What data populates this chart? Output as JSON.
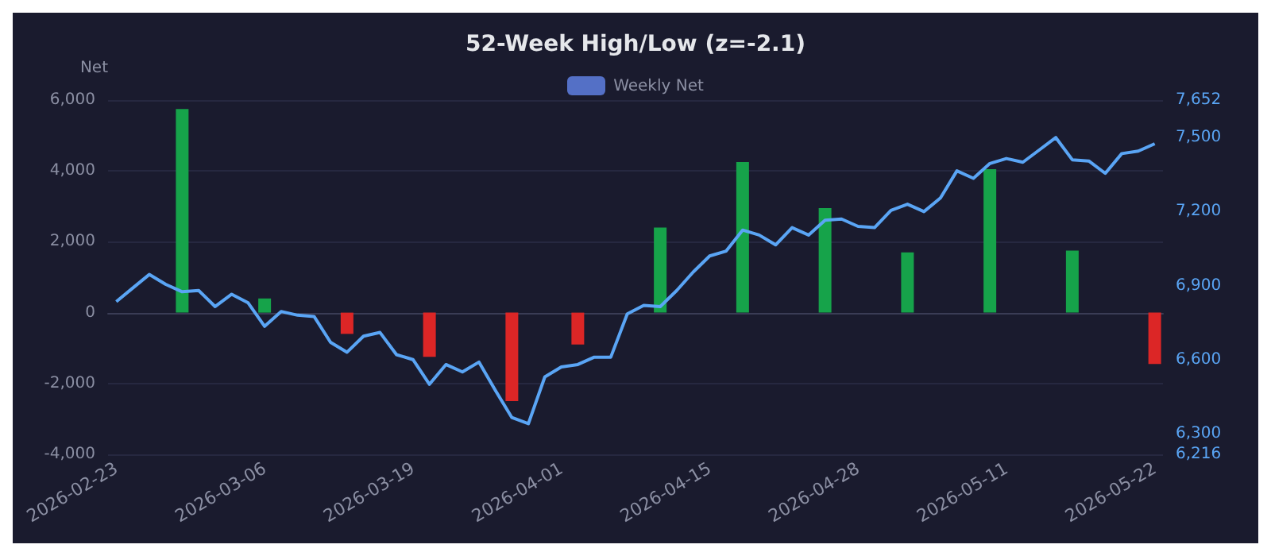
{
  "chart_data": {
    "type": "bar",
    "title": "52-Week High/Low (z=-2.1)",
    "ylabel": "Net",
    "categories": [
      "2026-02-23",
      null,
      null,
      null,
      null,
      null,
      null,
      null,
      null,
      "2026-03-06",
      null,
      null,
      null,
      null,
      null,
      null,
      null,
      null,
      "2026-03-19",
      null,
      null,
      null,
      null,
      null,
      null,
      null,
      null,
      "2026-04-01",
      null,
      null,
      null,
      null,
      null,
      null,
      null,
      null,
      "2026-04-15",
      null,
      null,
      null,
      null,
      null,
      null,
      null,
      null,
      "2026-04-28",
      null,
      null,
      null,
      null,
      null,
      null,
      null,
      null,
      "2026-05-11",
      null,
      null,
      null,
      null,
      null,
      null,
      null,
      null,
      "2026-05-22"
    ],
    "series": [
      {
        "name": "Weekly Net",
        "color": "#5470c6",
        "values": [
          null,
          null,
          null,
          null,
          5750,
          null,
          null,
          null,
          null,
          400,
          null,
          null,
          null,
          null,
          -600,
          null,
          null,
          null,
          null,
          -1250,
          null,
          null,
          null,
          null,
          -2500,
          null,
          null,
          null,
          -900,
          null,
          null,
          null,
          null,
          2400,
          null,
          null,
          null,
          null,
          4250,
          null,
          null,
          null,
          null,
          2950,
          null,
          null,
          null,
          null,
          1700,
          null,
          null,
          null,
          null,
          4050,
          null,
          null,
          null,
          null,
          1750,
          null,
          null,
          null,
          null,
          -1450
        ],
        "colors": [
          null,
          null,
          null,
          null,
          "#16a34a",
          null,
          null,
          null,
          null,
          "#16a34a",
          null,
          null,
          null,
          null,
          "#dc2626",
          null,
          null,
          null,
          null,
          "#dc2626",
          null,
          null,
          null,
          null,
          "#dc2626",
          null,
          null,
          null,
          "#dc2626",
          null,
          null,
          null,
          null,
          "#16a34a",
          null,
          null,
          null,
          null,
          "#16a34a",
          null,
          null,
          null,
          null,
          "#16a34a",
          null,
          null,
          null,
          null,
          "#16a34a",
          null,
          null,
          null,
          null,
          "#16a34a",
          null,
          null,
          null,
          null,
          "#16a34a",
          null,
          null,
          null,
          null,
          "#dc2626"
        ]
      },
      {
        "type": "line",
        "axis": "y2",
        "color": "#5aa5f5",
        "values": [
          6835,
          6890,
          6945,
          6905,
          6875,
          6880,
          6815,
          6865,
          6830,
          6735,
          6795,
          6780,
          6775,
          6670,
          6630,
          6695,
          6710,
          6620,
          6600,
          6500,
          6580,
          6550,
          6590,
          6475,
          6365,
          6340,
          6530,
          6570,
          6580,
          6610,
          6610,
          6785,
          6820,
          6815,
          6880,
          6955,
          7020,
          7040,
          7125,
          7105,
          7065,
          7135,
          7105,
          7165,
          7170,
          7140,
          7135,
          7205,
          7230,
          7200,
          7255,
          7365,
          7335,
          7395,
          7415,
          7400,
          7450,
          7500,
          7410,
          7405,
          7355,
          7435,
          7445,
          7475
        ]
      }
    ],
    "ylim": [
      -4000,
      6000
    ],
    "yticks": [
      {
        "value": -4000,
        "label": "-4,000"
      },
      {
        "value": -2000,
        "label": "-2,000"
      },
      0,
      {
        "value": 2000,
        "label": "2,000"
      },
      {
        "value": 4000,
        "label": "4,000"
      },
      {
        "value": 6000,
        "label": "6,000"
      }
    ],
    "y2lim": [
      6216,
      7652
    ],
    "y2ticks": [
      {
        "value": 6216,
        "label": "6,216"
      },
      {
        "value": 6300,
        "label": "6,300"
      },
      {
        "value": 6600,
        "label": "6,600"
      },
      {
        "value": 6900,
        "label": "6,900"
      },
      {
        "value": 7200,
        "label": "7,200"
      },
      {
        "value": 7500,
        "label": "7,500"
      },
      {
        "value": 7652,
        "label": "7,652"
      }
    ],
    "grid": "y",
    "legend": "top",
    "marker": "none",
    "line_style": "solid"
  }
}
